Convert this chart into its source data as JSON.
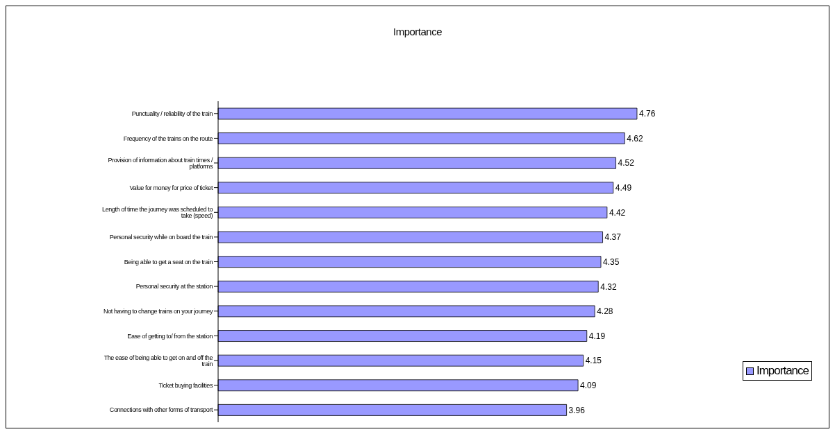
{
  "chart_data": {
    "type": "bar",
    "orientation": "horizontal",
    "title": "Importance",
    "categories": [
      "Punctuality / reliability of the train",
      "Frequency of the trains on the route",
      "Provision of information about train times / platforms",
      "Value for money for price of ticket",
      "Length of time the journey was scheduled to take (speed)",
      "Personal security while on board the train",
      "Being able to get a seat on the train",
      "Personal security at the station",
      "Not having to change trains on your journey",
      "Ease of getting to/ from the station",
      "The ease of being able to get on and off the train",
      "Ticket buying facilities",
      "Connections with other forms of transport"
    ],
    "series": [
      {
        "name": "Importance",
        "color": "#9999ff",
        "values": [
          4.76,
          4.62,
          4.52,
          4.49,
          4.42,
          4.37,
          4.35,
          4.32,
          4.28,
          4.19,
          4.15,
          4.09,
          3.96
        ]
      }
    ],
    "data_labels": true,
    "legend": "right",
    "grid": false
  }
}
